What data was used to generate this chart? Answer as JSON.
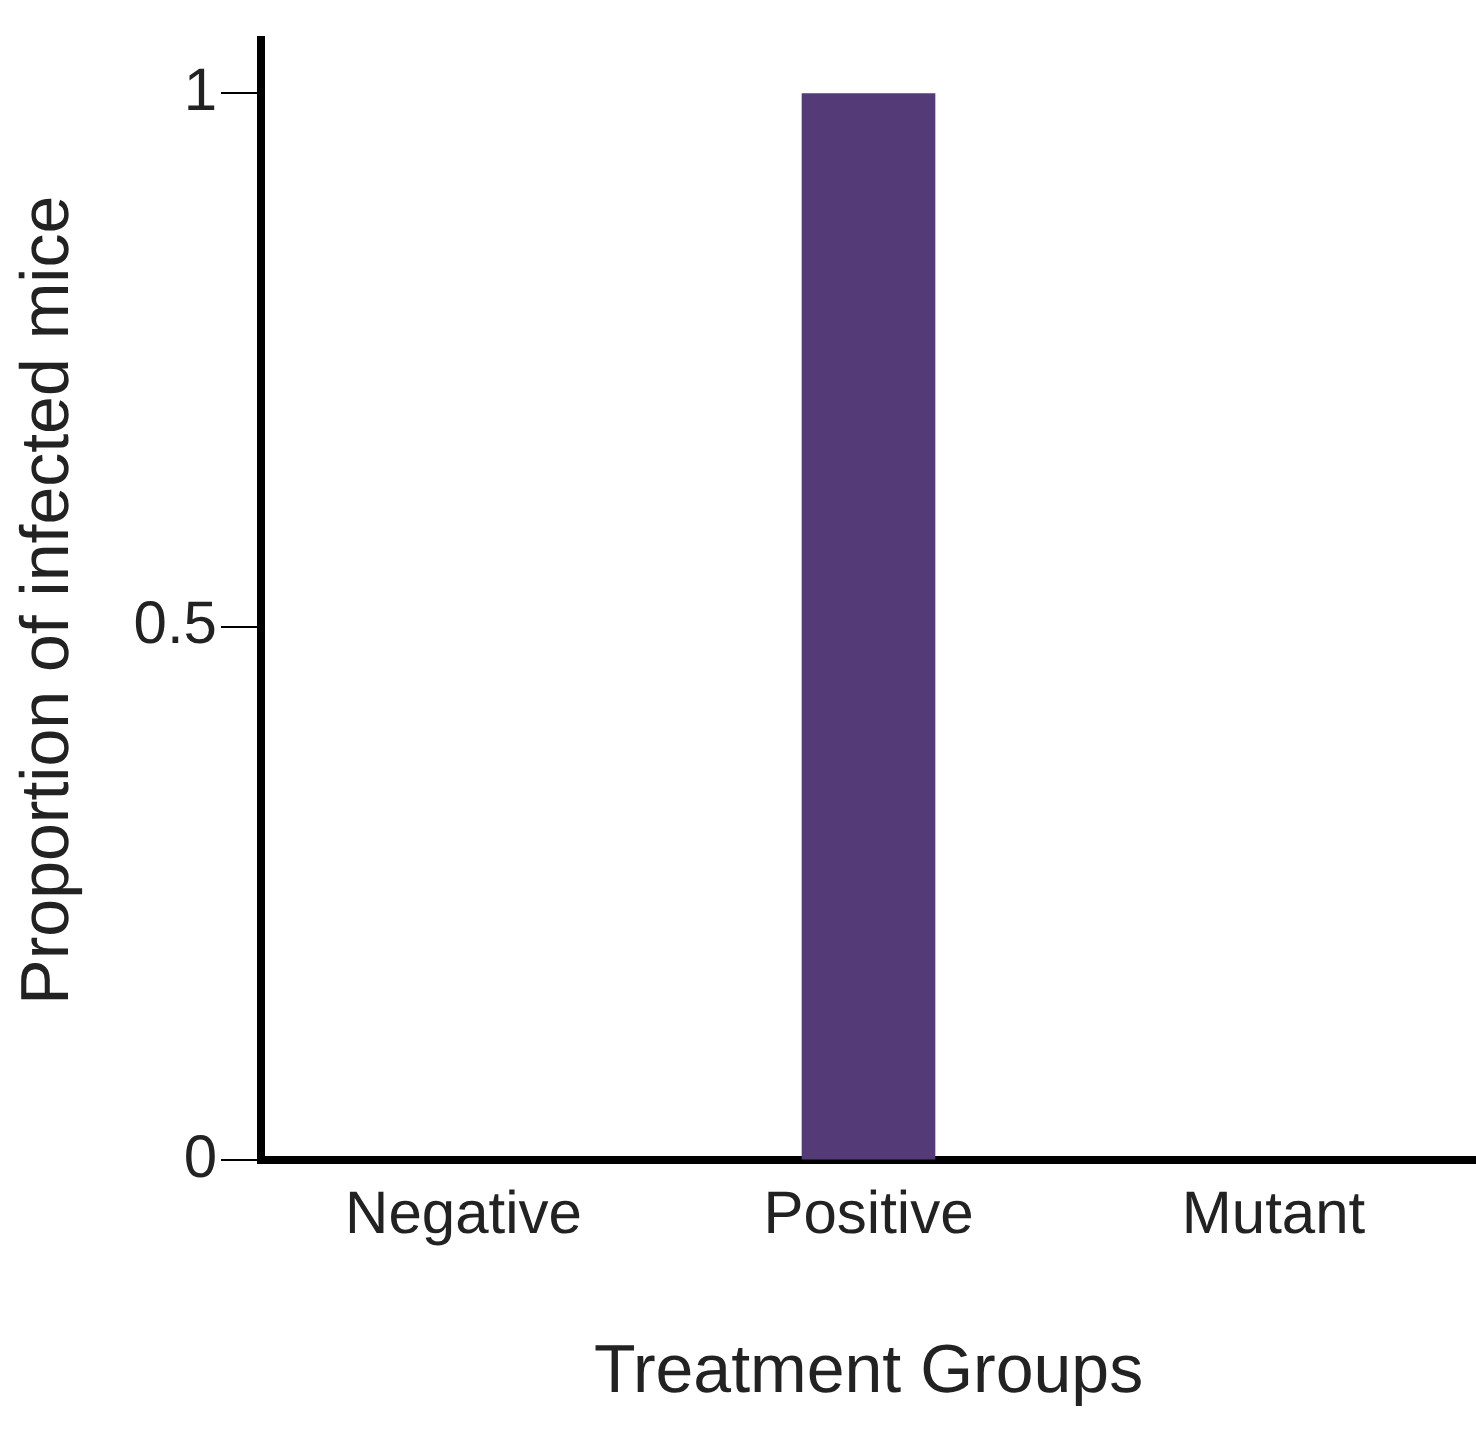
{
  "chart_data": {
    "type": "bar",
    "xlabel": "Treatment Groups",
    "ylabel": "Proportion of infected mice",
    "categories": [
      "Negative",
      "Positive",
      "Mutant"
    ],
    "values": [
      0,
      1,
      0
    ],
    "color": "#553a78",
    "ylim": [
      0,
      1.05
    ],
    "yticks": [
      0,
      0.5,
      1
    ],
    "grid": false,
    "legend": false
  }
}
